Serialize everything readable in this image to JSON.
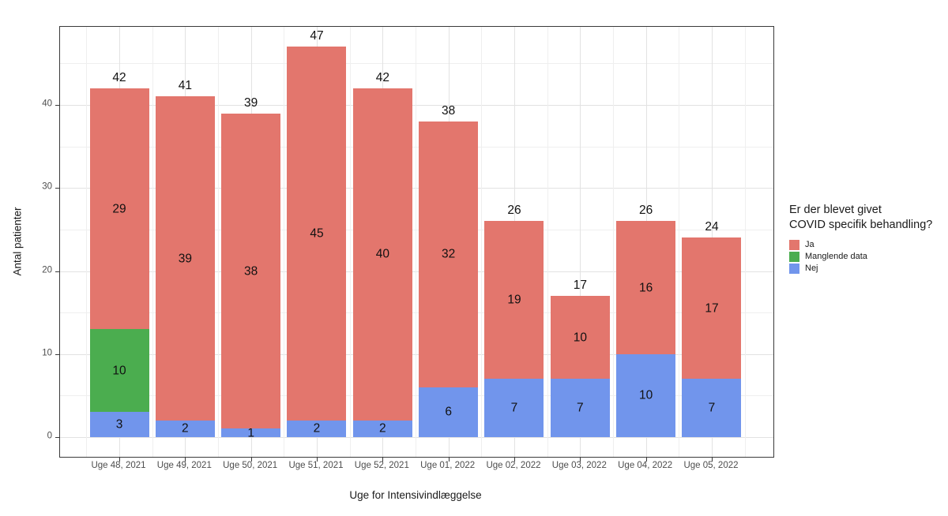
{
  "figure": {
    "y_axis_title": "Antal patienter",
    "x_axis_title": "Uge for Intensivindlæggelse"
  },
  "legend": {
    "title_lines": [
      "Er der blevet givet",
      "COVID specifik behandling?"
    ],
    "items": [
      {
        "label": "Ja",
        "color": "#E3766D"
      },
      {
        "label": "Manglende data",
        "color": "#4BAD4F"
      },
      {
        "label": "Nej",
        "color": "#7195EC"
      }
    ]
  },
  "chart_data": {
    "type": "bar",
    "stacked": true,
    "title": "",
    "xlabel": "Uge for Intensivindlæggelse",
    "ylabel": "Antal patienter",
    "categories": [
      "Uge 48, 2021",
      "Uge 49, 2021",
      "Uge 50, 2021",
      "Uge 51, 2021",
      "Uge 52, 2021",
      "Uge 01, 2022",
      "Uge 02, 2022",
      "Uge 03, 2022",
      "Uge 04, 2022",
      "Uge 05, 2022"
    ],
    "series": [
      {
        "name": "Ja",
        "color": "#E3766D",
        "values": [
          29,
          39,
          38,
          45,
          40,
          32,
          19,
          10,
          16,
          17
        ]
      },
      {
        "name": "Manglende data",
        "color": "#4BAD4F",
        "values": [
          10,
          0,
          0,
          0,
          0,
          0,
          0,
          0,
          0,
          0
        ]
      },
      {
        "name": "Nej",
        "color": "#7195EC",
        "values": [
          3,
          2,
          1,
          2,
          2,
          6,
          7,
          7,
          10,
          7
        ]
      }
    ],
    "stack_order_bottom_to_top": [
      "Nej",
      "Manglende data",
      "Ja"
    ],
    "totals": [
      42,
      41,
      39,
      47,
      42,
      38,
      26,
      17,
      26,
      24
    ],
    "y_ticks": [
      0,
      10,
      20,
      30,
      40
    ],
    "ylim": [
      0,
      49.4
    ],
    "grid": true,
    "legend_position": "right",
    "legend_title": "Er der blevet givet COVID specifik behandling?"
  }
}
